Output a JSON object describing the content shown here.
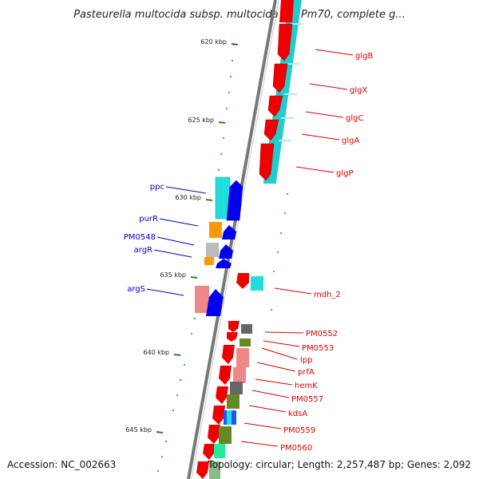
{
  "title": "Pasteurella multocida subsp. multocida str. Pm70, complete g...",
  "footer": {
    "accession": "Accession: NC_002663",
    "topology": "Topology: circular; Length: 2,257,487 bp; Genes: 2,092"
  },
  "colors": {
    "forward_gene_label": "#dd0000",
    "reverse_gene_label": "#0000cc",
    "tick": "#228822",
    "backbone": "#777777"
  },
  "ticks": [
    {
      "label": "620 kbp"
    },
    {
      "label": "625 kbp"
    },
    {
      "label": "630 kbp"
    },
    {
      "label": "635 kbp"
    },
    {
      "label": "640 kbp"
    },
    {
      "label": "645 kbp"
    }
  ],
  "genes_forward": [
    {
      "name": "glgB"
    },
    {
      "name": "glgX"
    },
    {
      "name": "glgC"
    },
    {
      "name": "glgA"
    },
    {
      "name": "glgP"
    },
    {
      "name": "mdh_2"
    },
    {
      "name": "PM0552"
    },
    {
      "name": "PM0553"
    },
    {
      "name": "lpp"
    },
    {
      "name": "prfA"
    },
    {
      "name": "hemK"
    },
    {
      "name": "PM0557"
    },
    {
      "name": "kdsA"
    },
    {
      "name": "PM0559"
    },
    {
      "name": "PM0560"
    }
  ],
  "genes_reverse": [
    {
      "name": "ppc"
    },
    {
      "name": "purR"
    },
    {
      "name": "PM0548"
    },
    {
      "name": "argR"
    },
    {
      "name": "argS"
    }
  ]
}
